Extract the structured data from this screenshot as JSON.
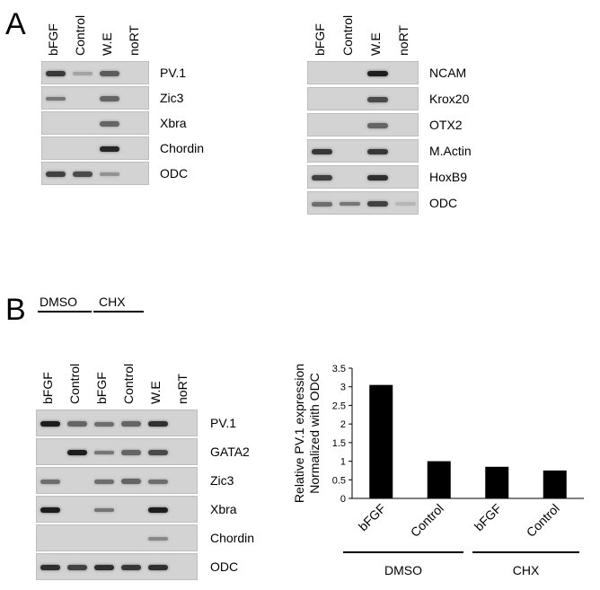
{
  "panelA": {
    "letter": "A",
    "left": {
      "lanes": [
        "bFGF",
        "Control",
        "W.E",
        "noRT"
      ],
      "rows": [
        {
          "gene": "PV.1",
          "bands": [
            0.8,
            0.2,
            0.6,
            0
          ]
        },
        {
          "gene": "Zic3",
          "bands": [
            0.45,
            0,
            0.55,
            0
          ]
        },
        {
          "gene": "Xbra",
          "bands": [
            0,
            0,
            0.55,
            0
          ]
        },
        {
          "gene": "Chordin",
          "bands": [
            0,
            0,
            0.9,
            0
          ]
        },
        {
          "gene": "ODC",
          "bands": [
            0.75,
            0.7,
            0.3,
            0
          ]
        }
      ]
    },
    "right": {
      "lanes": [
        "bFGF",
        "Control",
        "W.E",
        "noRT"
      ],
      "rows": [
        {
          "gene": "NCAM",
          "bands": [
            0,
            0,
            0.95,
            0
          ]
        },
        {
          "gene": "Krox20",
          "bands": [
            0,
            0,
            0.7,
            0
          ]
        },
        {
          "gene": "OTX2",
          "bands": [
            0,
            0,
            0.55,
            0
          ]
        },
        {
          "gene": "M.Actin",
          "bands": [
            0.8,
            0,
            0.8,
            0
          ]
        },
        {
          "gene": "HoxB9",
          "bands": [
            0.75,
            0,
            0.85,
            0
          ]
        },
        {
          "gene": "ODC",
          "bands": [
            0.5,
            0.45,
            0.75,
            0.1
          ]
        }
      ]
    }
  },
  "panelB": {
    "letter": "B",
    "group_dmso": "DMSO",
    "group_chx": "CHX",
    "lanes": [
      "bFGF",
      "Control",
      "bFGF",
      "Control",
      "W.E",
      "noRT"
    ],
    "rows": [
      {
        "gene": "PV.1",
        "bands": [
          0.95,
          0.55,
          0.5,
          0.55,
          0.85,
          0
        ]
      },
      {
        "gene": "GATA2",
        "bands": [
          0,
          0.95,
          0.45,
          0.55,
          0.7,
          0
        ]
      },
      {
        "gene": "Zic3",
        "bands": [
          0.5,
          0,
          0.5,
          0.55,
          0.5,
          0
        ]
      },
      {
        "gene": "Xbra",
        "bands": [
          0.95,
          0,
          0.45,
          0,
          0.95,
          0
        ]
      },
      {
        "gene": "Chordin",
        "bands": [
          0,
          0,
          0,
          0,
          0.35,
          0
        ]
      },
      {
        "gene": "ODC",
        "bands": [
          0.85,
          0.75,
          0.85,
          0.8,
          0.85,
          0
        ]
      }
    ]
  },
  "chart_data": {
    "type": "bar",
    "categories": [
      "bFGF",
      "Control",
      "bFGF",
      "Control"
    ],
    "groups": [
      {
        "name": "DMSO",
        "categories": [
          0,
          1
        ]
      },
      {
        "name": "CHX",
        "categories": [
          2,
          3
        ]
      }
    ],
    "values": [
      3.05,
      1.0,
      0.85,
      0.75
    ],
    "ylabel": "Relative PV.1 expression\nNormalized with ODC",
    "ylim": [
      0,
      3.5
    ],
    "yticks": [
      "0",
      "0.5",
      "1",
      "1.5",
      "2",
      "2.5",
      "3",
      "3.5"
    ],
    "ytick_values": [
      0,
      0.5,
      1,
      1.5,
      2,
      2.5,
      3,
      3.5
    ],
    "bar_color": "#000000",
    "grid": false
  }
}
